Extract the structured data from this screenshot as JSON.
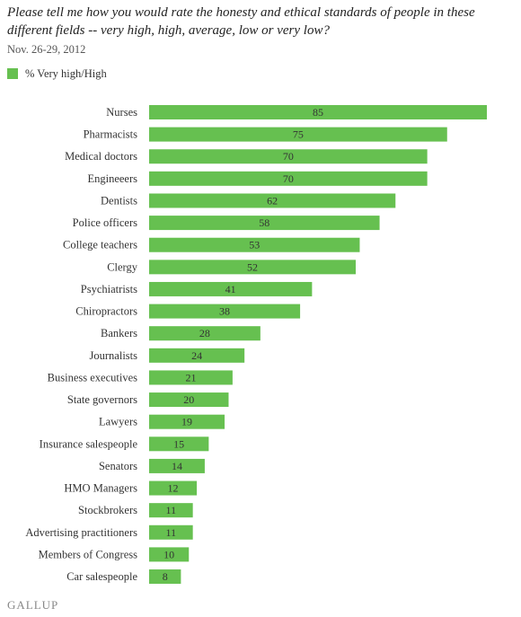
{
  "title": "Please tell me how you would rate the honesty and ethical standards of people in these different fields -- very high, high, average, low or very low?",
  "subtitle": "Nov. 26-29, 2012",
  "legend_label": "% Very high/High",
  "bar_color": "#66c050",
  "logo": "GALLUP",
  "chart_data": {
    "type": "bar",
    "orientation": "horizontal",
    "categories": [
      "Nurses",
      "Pharmacists",
      "Medical doctors",
      "Engineeers",
      "Dentists",
      "Police officers",
      "College teachers",
      "Clergy",
      "Psychiatrists",
      "Chiropractors",
      "Bankers",
      "Journalists",
      "Business executives",
      "State governors",
      "Lawyers",
      "Insurance salespeople",
      "Senators",
      "HMO Managers",
      "Stockbrokers",
      "Advertising practitioners",
      "Members of Congress",
      "Car salespeople"
    ],
    "series": [
      {
        "name": "% Very high/High",
        "values": [
          85,
          75,
          70,
          70,
          62,
          58,
          53,
          52,
          41,
          38,
          28,
          24,
          21,
          20,
          19,
          15,
          14,
          12,
          11,
          11,
          10,
          8
        ]
      }
    ],
    "xlim": [
      0,
      85
    ],
    "grid": false,
    "legend_position": "top-left"
  }
}
